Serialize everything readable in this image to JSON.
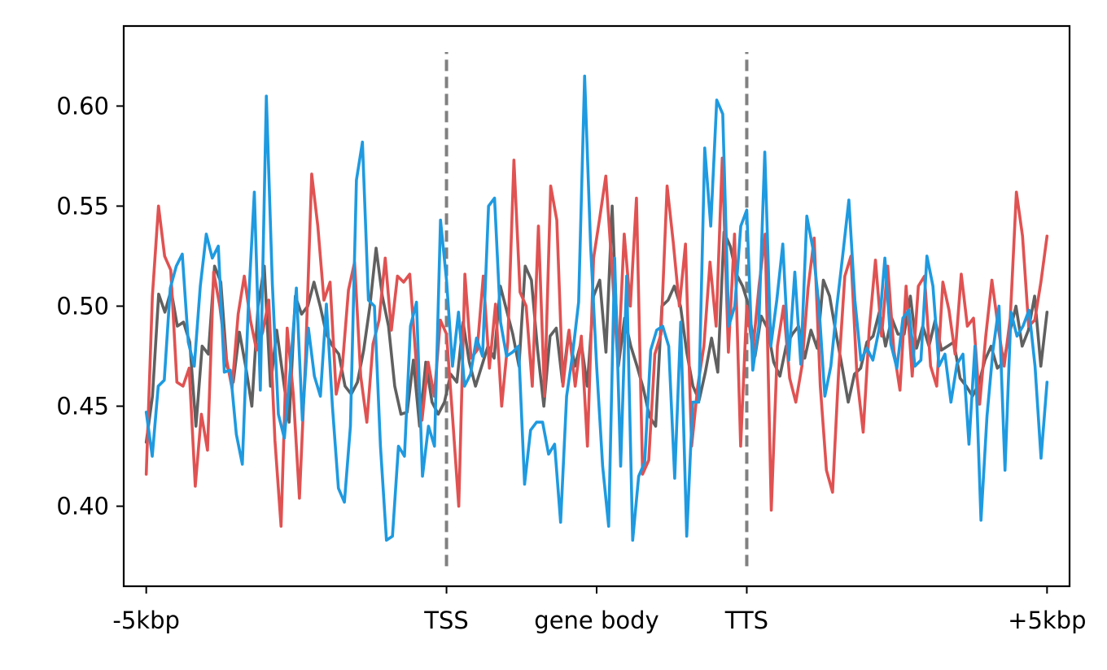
{
  "chart_data": {
    "type": "line",
    "title": "",
    "xlabel": "",
    "ylabel": "",
    "grid": false,
    "legend": "none",
    "xlim": [
      -0.15,
      6.15
    ],
    "ylim": [
      0.36,
      0.64
    ],
    "x_ticks": [
      {
        "pos": 0,
        "label": "-5kbp"
      },
      {
        "pos": 2,
        "label": "TSS"
      },
      {
        "pos": 3,
        "label": "gene body"
      },
      {
        "pos": 4,
        "label": "TTS"
      },
      {
        "pos": 6,
        "label": "+5kbp"
      }
    ],
    "y_ticks": [
      {
        "value": 0.4,
        "label": "0.40"
      },
      {
        "value": 0.45,
        "label": "0.45"
      },
      {
        "value": 0.5,
        "label": "0.50"
      },
      {
        "value": 0.55,
        "label": "0.55"
      },
      {
        "value": 0.6,
        "label": "0.60"
      }
    ],
    "markers": [
      {
        "x": 2,
        "y_range": [
          0.37,
          0.627
        ],
        "color": "#808080",
        "style": "dashed"
      },
      {
        "x": 4,
        "y_range": [
          0.37,
          0.627
        ],
        "color": "#808080",
        "style": "dashed"
      }
    ],
    "x_domain": [
      0,
      6
    ],
    "series": [
      {
        "color": "#606060",
        "values": [
          0.432,
          0.455,
          0.506,
          0.497,
          0.508,
          0.49,
          0.492,
          0.482,
          0.44,
          0.48,
          0.476,
          0.52,
          0.512,
          0.47,
          0.462,
          0.487,
          0.47,
          0.45,
          0.5,
          0.52,
          0.46,
          0.488,
          0.465,
          0.442,
          0.505,
          0.496,
          0.5,
          0.512,
          0.5,
          0.486,
          0.48,
          0.476,
          0.46,
          0.456,
          0.462,
          0.478,
          0.5,
          0.529,
          0.505,
          0.49,
          0.46,
          0.446,
          0.447,
          0.473,
          0.44,
          0.472,
          0.452,
          0.446,
          0.452,
          0.466,
          0.462,
          0.492,
          0.472,
          0.46,
          0.47,
          0.48,
          0.474,
          0.51,
          0.498,
          0.486,
          0.47,
          0.52,
          0.513,
          0.478,
          0.45,
          0.485,
          0.489,
          0.462,
          0.487,
          0.47,
          0.482,
          0.46,
          0.505,
          0.513,
          0.477,
          0.55,
          0.47,
          0.494,
          0.48,
          0.47,
          0.459,
          0.445,
          0.44,
          0.5,
          0.503,
          0.51,
          0.5,
          0.477,
          0.46,
          0.453,
          0.467,
          0.484,
          0.467,
          0.537,
          0.53,
          0.516,
          0.51,
          0.5,
          0.475,
          0.495,
          0.489,
          0.472,
          0.465,
          0.48,
          0.486,
          0.49,
          0.474,
          0.488,
          0.479,
          0.513,
          0.505,
          0.487,
          0.47,
          0.452,
          0.466,
          0.469,
          0.482,
          0.485,
          0.497,
          0.48,
          0.494,
          0.486,
          0.486,
          0.505,
          0.479,
          0.49,
          0.48,
          0.493,
          0.478,
          0.48,
          0.482,
          0.464,
          0.46,
          0.455,
          0.461,
          0.473,
          0.48,
          0.469,
          0.472,
          0.487,
          0.5,
          0.48,
          0.488,
          0.505,
          0.47,
          0.497
        ]
      },
      {
        "color": "#e05252",
        "values": [
          0.416,
          0.505,
          0.55,
          0.525,
          0.518,
          0.462,
          0.46,
          0.469,
          0.41,
          0.446,
          0.428,
          0.517,
          0.5,
          0.475,
          0.459,
          0.496,
          0.515,
          0.493,
          0.478,
          0.487,
          0.503,
          0.433,
          0.39,
          0.489,
          0.456,
          0.404,
          0.474,
          0.566,
          0.54,
          0.503,
          0.512,
          0.456,
          0.47,
          0.508,
          0.522,
          0.465,
          0.442,
          0.481,
          0.493,
          0.524,
          0.488,
          0.515,
          0.512,
          0.516,
          0.474,
          0.443,
          0.472,
          0.455,
          0.493,
          0.486,
          0.444,
          0.4,
          0.516,
          0.474,
          0.478,
          0.515,
          0.469,
          0.501,
          0.45,
          0.482,
          0.573,
          0.507,
          0.5,
          0.46,
          0.54,
          0.455,
          0.56,
          0.543,
          0.46,
          0.488,
          0.46,
          0.485,
          0.43,
          0.524,
          0.544,
          0.565,
          0.519,
          0.47,
          0.536,
          0.5,
          0.554,
          0.416,
          0.423,
          0.476,
          0.486,
          0.56,
          0.532,
          0.5,
          0.531,
          0.43,
          0.46,
          0.48,
          0.522,
          0.49,
          0.574,
          0.477,
          0.536,
          0.43,
          0.5,
          0.478,
          0.51,
          0.536,
          0.398,
          0.48,
          0.5,
          0.464,
          0.452,
          0.47,
          0.509,
          0.534,
          0.46,
          0.418,
          0.407,
          0.468,
          0.515,
          0.525,
          0.464,
          0.437,
          0.489,
          0.523,
          0.485,
          0.52,
          0.478,
          0.458,
          0.51,
          0.465,
          0.51,
          0.515,
          0.47,
          0.46,
          0.512,
          0.498,
          0.476,
          0.516,
          0.49,
          0.494,
          0.451,
          0.485,
          0.513,
          0.49,
          0.47,
          0.494,
          0.557,
          0.535,
          0.49,
          0.493,
          0.512,
          0.535
        ]
      },
      {
        "color": "#1e9ae0",
        "values": [
          0.447,
          0.425,
          0.46,
          0.463,
          0.509,
          0.52,
          0.526,
          0.482,
          0.47,
          0.51,
          0.536,
          0.524,
          0.53,
          0.467,
          0.468,
          0.436,
          0.421,
          0.5,
          0.557,
          0.458,
          0.605,
          0.511,
          0.446,
          0.434,
          0.469,
          0.509,
          0.443,
          0.489,
          0.465,
          0.455,
          0.501,
          0.45,
          0.409,
          0.402,
          0.44,
          0.563,
          0.582,
          0.503,
          0.5,
          0.43,
          0.383,
          0.385,
          0.43,
          0.425,
          0.49,
          0.502,
          0.415,
          0.44,
          0.43,
          0.543,
          0.513,
          0.47,
          0.497,
          0.46,
          0.466,
          0.484,
          0.475,
          0.55,
          0.554,
          0.492,
          0.475,
          0.477,
          0.48,
          0.411,
          0.438,
          0.442,
          0.442,
          0.426,
          0.431,
          0.392,
          0.455,
          0.476,
          0.502,
          0.615,
          0.53,
          0.47,
          0.42,
          0.39,
          0.524,
          0.42,
          0.515,
          0.383,
          0.415,
          0.422,
          0.478,
          0.488,
          0.49,
          0.48,
          0.414,
          0.492,
          0.385,
          0.452,
          0.452,
          0.579,
          0.54,
          0.603,
          0.596,
          0.49,
          0.5,
          0.54,
          0.548,
          0.468,
          0.49,
          0.577,
          0.48,
          0.503,
          0.531,
          0.473,
          0.517,
          0.471,
          0.545,
          0.529,
          0.501,
          0.455,
          0.47,
          0.5,
          0.526,
          0.553,
          0.503,
          0.473,
          0.479,
          0.473,
          0.488,
          0.524,
          0.481,
          0.469,
          0.494,
          0.498,
          0.47,
          0.473,
          0.525,
          0.51,
          0.47,
          0.476,
          0.452,
          0.471,
          0.476,
          0.431,
          0.48,
          0.393,
          0.445,
          0.478,
          0.5,
          0.418,
          0.497,
          0.485,
          0.49,
          0.498,
          0.47,
          0.424,
          0.462
        ]
      }
    ]
  }
}
